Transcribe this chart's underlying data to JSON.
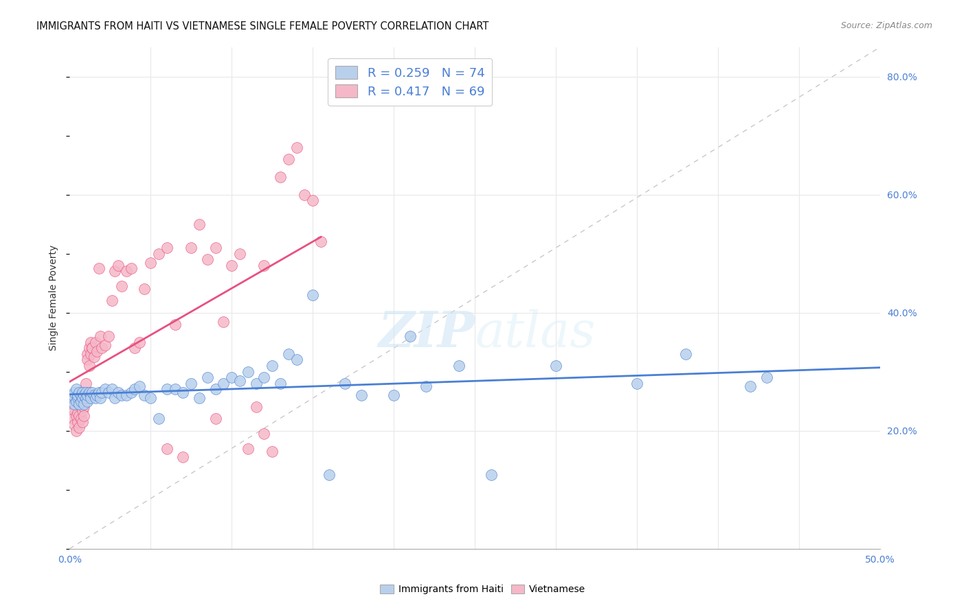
{
  "title": "IMMIGRANTS FROM HAITI VS VIETNAMESE SINGLE FEMALE POVERTY CORRELATION CHART",
  "source": "Source: ZipAtlas.com",
  "ylabel_label": "Single Female Poverty",
  "xlim": [
    0.0,
    0.5
  ],
  "ylim": [
    0.0,
    0.85
  ],
  "xticks": [
    0.0,
    0.05,
    0.1,
    0.15,
    0.2,
    0.25,
    0.3,
    0.35,
    0.4,
    0.45,
    0.5
  ],
  "yticks": [
    0.0,
    0.2,
    0.4,
    0.6,
    0.8
  ],
  "yticklabels_right": [
    "",
    "20.0%",
    "40.0%",
    "60.0%",
    "80.0%"
  ],
  "haiti_color": "#b8d0ec",
  "viet_color": "#f5b8c8",
  "haiti_line_color": "#4a7fd4",
  "viet_line_color": "#e85080",
  "diag_color": "#c8c8c8",
  "R_haiti": 0.259,
  "N_haiti": 74,
  "R_viet": 0.417,
  "N_viet": 69,
  "watermark_zip": "ZIP",
  "watermark_atlas": "atlas",
  "background_color": "#ffffff",
  "grid_color": "#e8e8e8",
  "haiti_x": [
    0.001,
    0.002,
    0.003,
    0.003,
    0.004,
    0.004,
    0.005,
    0.005,
    0.006,
    0.006,
    0.007,
    0.007,
    0.008,
    0.008,
    0.009,
    0.009,
    0.01,
    0.01,
    0.011,
    0.011,
    0.012,
    0.013,
    0.013,
    0.014,
    0.015,
    0.016,
    0.017,
    0.018,
    0.019,
    0.02,
    0.022,
    0.024,
    0.026,
    0.028,
    0.03,
    0.032,
    0.035,
    0.038,
    0.04,
    0.043,
    0.046,
    0.05,
    0.055,
    0.06,
    0.065,
    0.07,
    0.075,
    0.08,
    0.085,
    0.09,
    0.095,
    0.1,
    0.105,
    0.11,
    0.115,
    0.12,
    0.125,
    0.13,
    0.135,
    0.14,
    0.15,
    0.16,
    0.17,
    0.18,
    0.2,
    0.21,
    0.22,
    0.24,
    0.26,
    0.3,
    0.35,
    0.38,
    0.42,
    0.43
  ],
  "haiti_y": [
    0.255,
    0.26,
    0.245,
    0.265,
    0.25,
    0.27,
    0.255,
    0.26,
    0.245,
    0.265,
    0.25,
    0.26,
    0.255,
    0.265,
    0.245,
    0.26,
    0.255,
    0.265,
    0.25,
    0.26,
    0.265,
    0.26,
    0.255,
    0.265,
    0.26,
    0.255,
    0.26,
    0.265,
    0.255,
    0.265,
    0.27,
    0.265,
    0.27,
    0.255,
    0.265,
    0.26,
    0.26,
    0.265,
    0.27,
    0.275,
    0.26,
    0.255,
    0.22,
    0.27,
    0.27,
    0.265,
    0.28,
    0.255,
    0.29,
    0.27,
    0.28,
    0.29,
    0.285,
    0.3,
    0.28,
    0.29,
    0.31,
    0.28,
    0.33,
    0.32,
    0.43,
    0.125,
    0.28,
    0.26,
    0.26,
    0.36,
    0.275,
    0.31,
    0.125,
    0.31,
    0.28,
    0.33,
    0.275,
    0.29
  ],
  "viet_x": [
    0.001,
    0.002,
    0.002,
    0.003,
    0.003,
    0.004,
    0.004,
    0.005,
    0.005,
    0.006,
    0.006,
    0.007,
    0.007,
    0.008,
    0.008,
    0.009,
    0.009,
    0.01,
    0.01,
    0.011,
    0.011,
    0.012,
    0.012,
    0.013,
    0.013,
    0.014,
    0.014,
    0.015,
    0.016,
    0.017,
    0.018,
    0.019,
    0.02,
    0.022,
    0.024,
    0.026,
    0.028,
    0.03,
    0.032,
    0.035,
    0.038,
    0.04,
    0.043,
    0.046,
    0.05,
    0.055,
    0.06,
    0.065,
    0.07,
    0.075,
    0.08,
    0.085,
    0.09,
    0.095,
    0.1,
    0.105,
    0.11,
    0.115,
    0.12,
    0.125,
    0.13,
    0.135,
    0.14,
    0.145,
    0.15,
    0.155,
    0.12,
    0.09,
    0.06
  ],
  "viet_y": [
    0.25,
    0.24,
    0.22,
    0.235,
    0.21,
    0.225,
    0.2,
    0.215,
    0.23,
    0.225,
    0.205,
    0.24,
    0.22,
    0.235,
    0.215,
    0.24,
    0.225,
    0.265,
    0.28,
    0.33,
    0.32,
    0.34,
    0.31,
    0.33,
    0.35,
    0.34,
    0.34,
    0.325,
    0.35,
    0.335,
    0.475,
    0.36,
    0.34,
    0.345,
    0.36,
    0.42,
    0.47,
    0.48,
    0.445,
    0.47,
    0.475,
    0.34,
    0.35,
    0.44,
    0.485,
    0.5,
    0.51,
    0.38,
    0.155,
    0.51,
    0.55,
    0.49,
    0.51,
    0.385,
    0.48,
    0.5,
    0.17,
    0.24,
    0.195,
    0.165,
    0.63,
    0.66,
    0.68,
    0.6,
    0.59,
    0.52,
    0.48,
    0.22,
    0.17
  ]
}
